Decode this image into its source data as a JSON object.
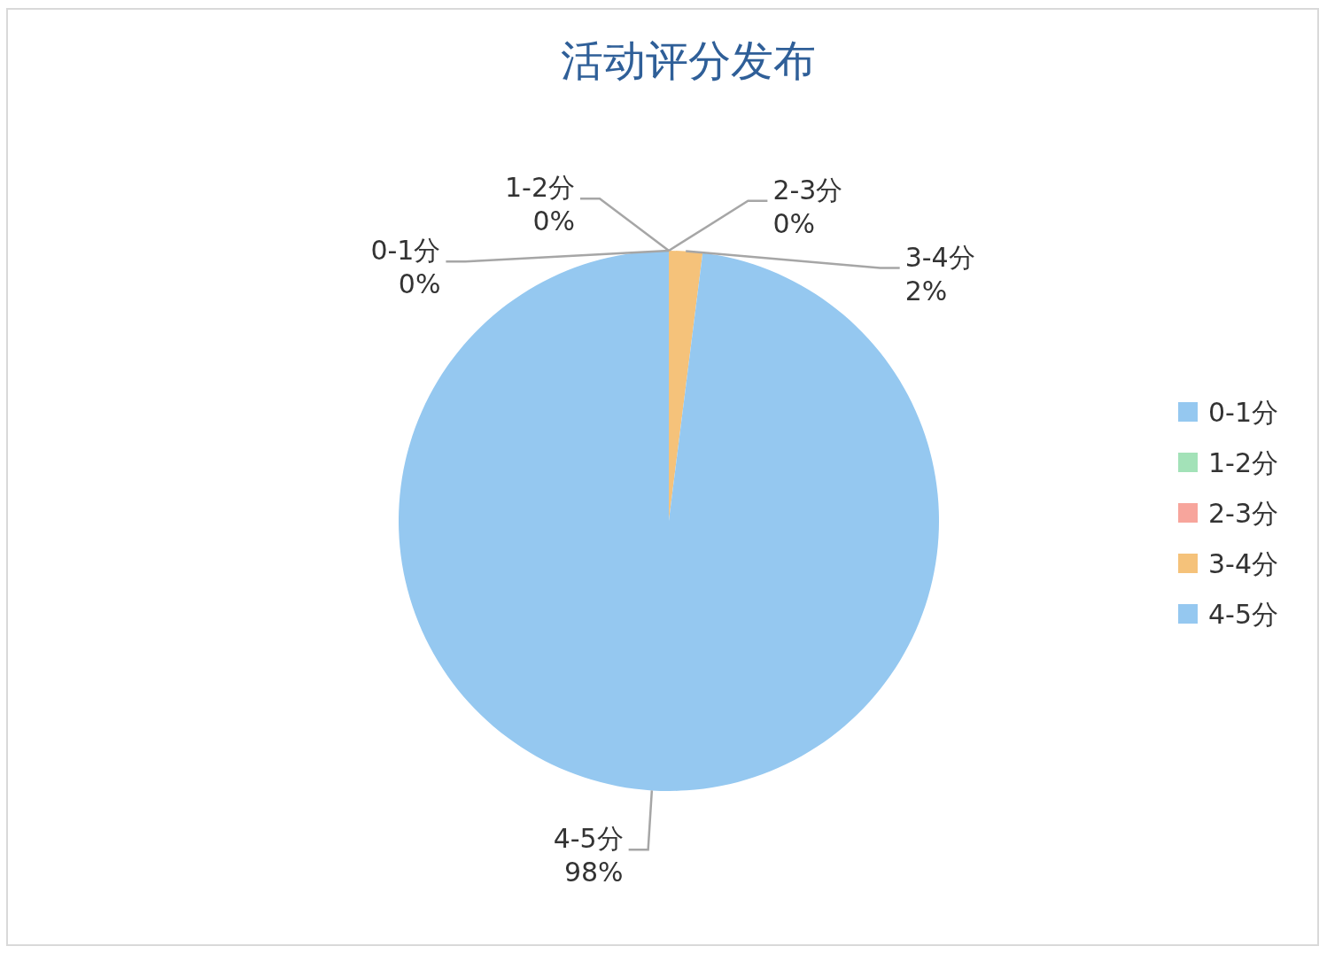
{
  "chart_data": {
    "type": "pie",
    "title": "活动评分发布",
    "categories": [
      "0-1分",
      "1-2分",
      "2-3分",
      "3-4分",
      "4-5分"
    ],
    "values": [
      0,
      0,
      0,
      2,
      98
    ],
    "value_labels": [
      "0%",
      "0%",
      "0%",
      "2%",
      "98%"
    ],
    "colors": [
      "#95c8f0",
      "#a3e2b8",
      "#f7a59c",
      "#f5c27a",
      "#95c8f0"
    ],
    "legend": "right"
  }
}
